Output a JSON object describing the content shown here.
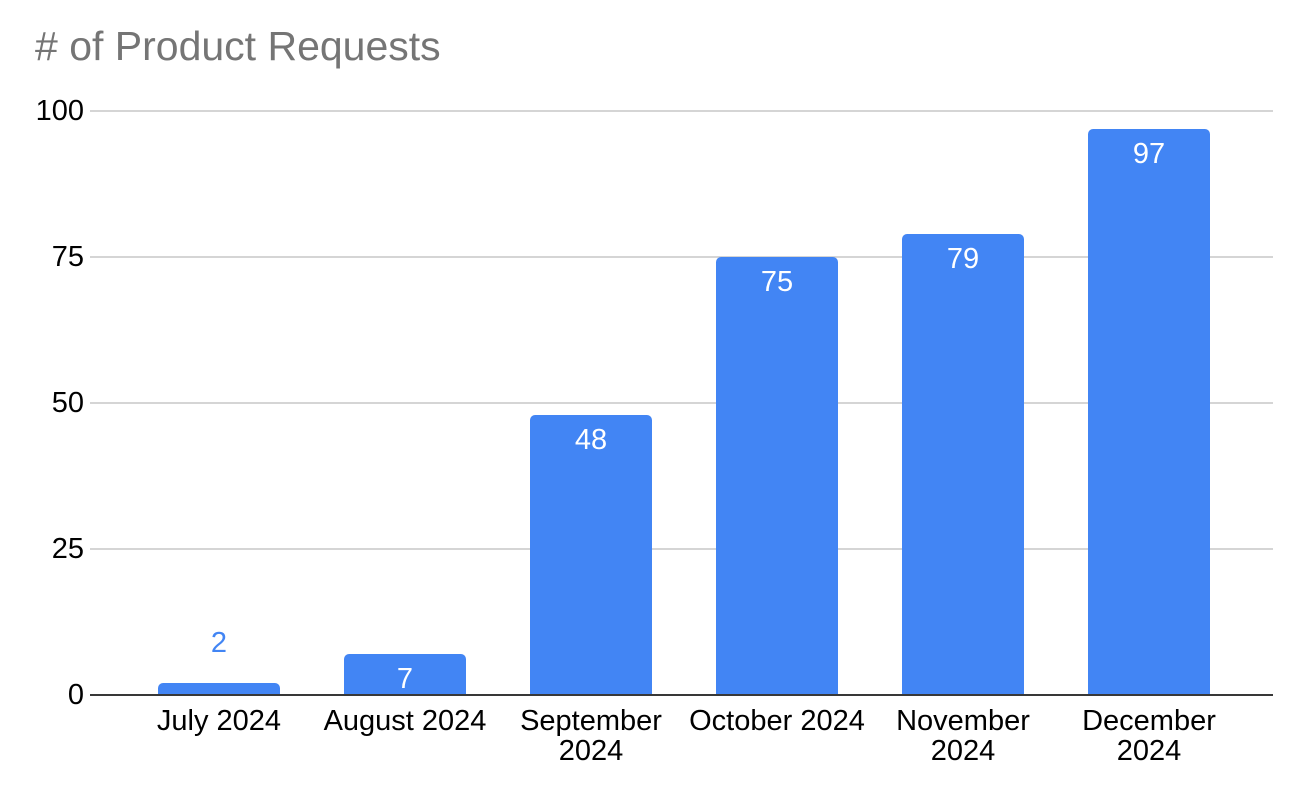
{
  "chart_data": {
    "type": "bar",
    "title": "# of Product Requests",
    "categories": [
      "July 2024",
      "August 2024",
      "September 2024",
      "October 2024",
      "November 2024",
      "December 2024"
    ],
    "series": [
      {
        "name": "# of Product Requests",
        "values": [
          2,
          7,
          48,
          75,
          79,
          97
        ]
      }
    ],
    "data_labels": [
      "2",
      "7",
      "48",
      "75",
      "79",
      "97"
    ],
    "xlabel": "",
    "ylabel": "",
    "ylim": [
      0,
      100
    ],
    "yticks": [
      0,
      25,
      50,
      75,
      100
    ],
    "grid": true,
    "legend_position": "none",
    "colors": {
      "bar_fill": "#4285f4",
      "label_inside": "#ffffff",
      "label_outside": "#4285f4",
      "title_text": "#757575",
      "axis_text": "#000000",
      "gridline": "#d5d5d5",
      "baseline": "#383838",
      "background": "#ffffff"
    }
  }
}
